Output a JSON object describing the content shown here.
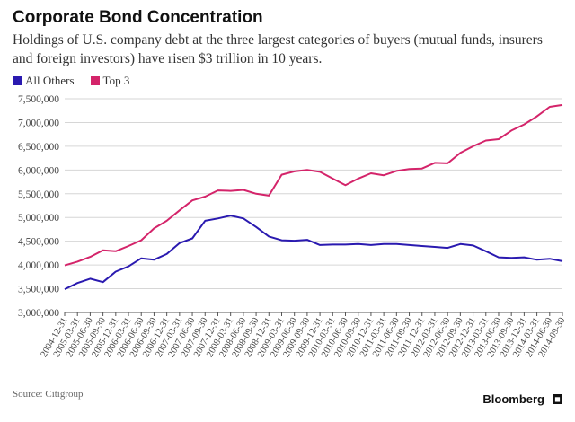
{
  "header": {
    "title": "Corporate Bond Concentration",
    "subtitle": "Holdings of U.S. company debt at the three largest categories of buyers (mutual funds, insurers and foreign investors) have risen $3 trillion in 10 years."
  },
  "footer": {
    "source": "Source: Citigroup",
    "brand": "Bloomberg"
  },
  "colors": {
    "all_others": "#2a1ab0",
    "top3": "#d4246a",
    "grid": "#d6d6d6",
    "axis": "#555555"
  },
  "chart_data": {
    "type": "line",
    "title": "Corporate Bond Concentration",
    "xlabel": "",
    "ylabel": "",
    "ylim": [
      3000000,
      7500000
    ],
    "yticks": [
      3000000,
      3500000,
      4000000,
      4500000,
      5000000,
      5500000,
      6000000,
      6500000,
      7000000,
      7500000
    ],
    "ytick_labels": [
      "3,000,000",
      "3,500,000",
      "4,000,000",
      "4,500,000",
      "5,000,000",
      "5,500,000",
      "6,000,000",
      "6,500,000",
      "7,000,000",
      "7,500,000"
    ],
    "grid": true,
    "legend_position": "top-left",
    "x": [
      "2004-12-31",
      "2005-03-31",
      "2005-06-30",
      "2005-09-30",
      "2005-12-31",
      "2006-03-31",
      "2006-06-30",
      "2006-09-30",
      "2006-12-31",
      "2007-03-31",
      "2007-06-30",
      "2007-09-30",
      "2007-12-31",
      "2008-03-31",
      "2008-06-30",
      "2008-09-30",
      "2008-12-31",
      "2009-03-31",
      "2009-06-30",
      "2009-09-30",
      "2009-12-31",
      "2010-03-31",
      "2010-06-30",
      "2010-09-30",
      "2010-12-31",
      "2011-03-31",
      "2011-06-30",
      "2011-09-30",
      "2011-12-31",
      "2012-03-31",
      "2012-06-30",
      "2012-09-30",
      "2012-12-31",
      "2013-03-31",
      "2013-06-30",
      "2013-09-30",
      "2013-12-31",
      "2014-03-31",
      "2014-06-30",
      "2014-09-30"
    ],
    "series": [
      {
        "name": "All Others",
        "color": "#2a1ab0",
        "values": [
          3490000,
          3620000,
          3710000,
          3640000,
          3860000,
          3970000,
          4140000,
          4110000,
          4230000,
          4460000,
          4560000,
          4930000,
          4980000,
          5040000,
          4980000,
          4800000,
          4600000,
          4520000,
          4510000,
          4530000,
          4420000,
          4430000,
          4430000,
          4440000,
          4420000,
          4440000,
          4440000,
          4420000,
          4400000,
          4380000,
          4360000,
          4440000,
          4410000,
          4290000,
          4160000,
          4150000,
          4160000,
          4110000,
          4130000,
          4080000
        ]
      },
      {
        "name": "Top 3",
        "color": "#d4246a",
        "values": [
          3990000,
          4070000,
          4170000,
          4310000,
          4290000,
          4400000,
          4520000,
          4770000,
          4930000,
          5150000,
          5360000,
          5440000,
          5570000,
          5560000,
          5580000,
          5500000,
          5460000,
          5900000,
          5970000,
          6000000,
          5960000,
          5820000,
          5680000,
          5820000,
          5930000,
          5890000,
          5980000,
          6020000,
          6030000,
          6150000,
          6140000,
          6360000,
          6500000,
          6620000,
          6650000,
          6830000,
          6960000,
          7130000,
          7330000,
          7370000
        ]
      }
    ]
  }
}
